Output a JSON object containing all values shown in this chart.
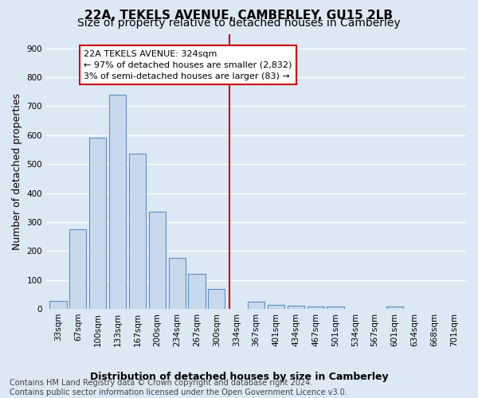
{
  "title": "22A, TEKELS AVENUE, CAMBERLEY, GU15 2LB",
  "subtitle": "Size of property relative to detached houses in Camberley",
  "xlabel": "Distribution of detached houses by size in Camberley",
  "ylabel": "Number of detached properties",
  "footer": "Contains HM Land Registry data © Crown copyright and database right 2024.\nContains public sector information licensed under the Open Government Licence v3.0.",
  "categories": [
    "33sqm",
    "67sqm",
    "100sqm",
    "133sqm",
    "167sqm",
    "200sqm",
    "234sqm",
    "267sqm",
    "300sqm",
    "334sqm",
    "367sqm",
    "401sqm",
    "434sqm",
    "467sqm",
    "501sqm",
    "534sqm",
    "567sqm",
    "601sqm",
    "634sqm",
    "668sqm",
    "701sqm"
  ],
  "values": [
    27,
    275,
    590,
    740,
    535,
    335,
    175,
    120,
    68,
    0,
    25,
    15,
    12,
    8,
    8,
    0,
    0,
    8,
    0,
    0,
    0
  ],
  "bar_color": "#c9d9ed",
  "bar_edge_color": "#5a8fc2",
  "vline_color": "#cc0000",
  "vline_x": 8.67,
  "annotation_text": "22A TEKELS AVENUE: 324sqm\n← 97% of detached houses are smaller (2,832)\n3% of semi-detached houses are larger (83) →",
  "annotation_box_color": "#cc0000",
  "ylim": [
    0,
    950
  ],
  "yticks": [
    0,
    100,
    200,
    300,
    400,
    500,
    600,
    700,
    800,
    900
  ],
  "bg_color": "#dde8f5",
  "plot_bg_color": "#dde8f5",
  "grid_color": "#ffffff",
  "title_fontsize": 11,
  "subtitle_fontsize": 10,
  "axis_label_fontsize": 9,
  "tick_fontsize": 7.5,
  "annotation_fontsize": 8,
  "footer_fontsize": 7
}
